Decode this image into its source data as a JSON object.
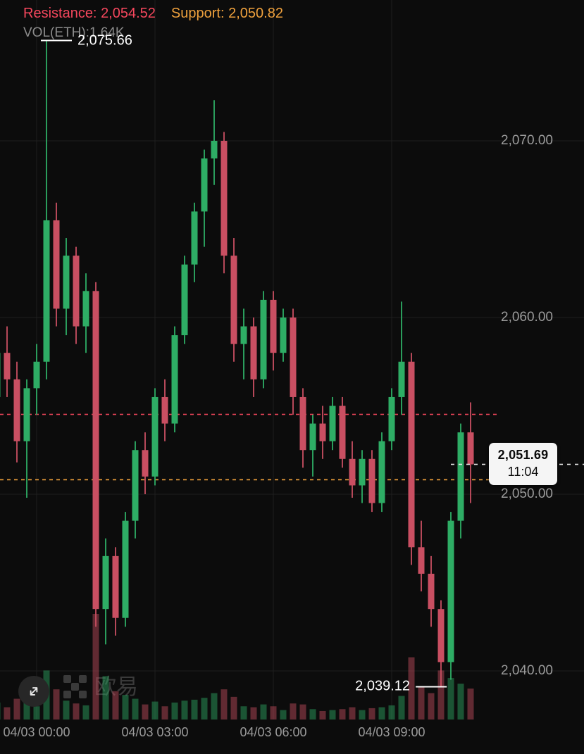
{
  "header": {
    "resistance_label": "Resistance:",
    "resistance_value": "2,054.52",
    "support_label": "Support:",
    "support_value": "2,050.82",
    "volume_text": "VOL(ETH):1.64K"
  },
  "annotations": {
    "high_label": "2,075.66",
    "low_label": "2,039.12"
  },
  "price_tag": {
    "price": "2,051.69",
    "time": "11:04"
  },
  "y_axis": {
    "labels": [
      "2,070.00",
      "2,060.00",
      "2,050.00",
      "2,040.00"
    ],
    "values": [
      2070,
      2060,
      2050,
      2040
    ]
  },
  "x_axis": {
    "labels": [
      "04/03 00:00",
      "04/03 03:00",
      "04/03 06:00",
      "04/03 09:00"
    ]
  },
  "watermark": {
    "text": "欧易"
  },
  "colors": {
    "background": "#0C0C0C",
    "bull": "#2EAD65",
    "bear": "#C94F62",
    "resistance": "#F5475D",
    "support": "#EFA13D",
    "grid": "#1E1E1E",
    "axis_text": "#9B9B9B",
    "annotation_text": "#FFFFFF",
    "last_price_line": "#EDEDED",
    "price_tag_bg": "#F5F5F5",
    "price_tag_text": "#0B0B0B",
    "watermark": "#3A3A3A"
  },
  "chart_data": {
    "type": "candlestick",
    "title": "",
    "xlabel": "",
    "ylabel": "",
    "grid": true,
    "ylim": [
      2036,
      2078
    ],
    "levels": {
      "resistance": 2054.52,
      "support": 2050.82
    },
    "high": 2075.66,
    "low": 2039.12,
    "last_price": 2051.69,
    "last_time": "11:04",
    "tick_candle_indices": [
      4,
      16,
      28,
      40
    ],
    "candles_format": [
      "open",
      "high",
      "low",
      "close",
      "volume"
    ],
    "candles": [
      [
        2055.5,
        2059.0,
        2054.0,
        2058.0,
        900
      ],
      [
        2058.0,
        2059.5,
        2055.5,
        2056.5,
        650
      ],
      [
        2056.5,
        2057.5,
        2051.8,
        2053.0,
        1100
      ],
      [
        2053.0,
        2056.5,
        2049.8,
        2056.0,
        950
      ],
      [
        2056.0,
        2058.5,
        2054.5,
        2057.5,
        700
      ],
      [
        2057.5,
        2075.66,
        2056.5,
        2065.5,
        2600
      ],
      [
        2065.5,
        2066.5,
        2059.5,
        2060.5,
        1600
      ],
      [
        2060.5,
        2064.5,
        2059.0,
        2063.5,
        1000
      ],
      [
        2063.5,
        2064.0,
        2058.5,
        2059.5,
        850
      ],
      [
        2059.5,
        2062.5,
        2058.0,
        2061.5,
        750
      ],
      [
        2061.5,
        2062.0,
        2042.5,
        2043.5,
        5600
      ],
      [
        2043.5,
        2047.5,
        2041.5,
        2046.5,
        2300
      ],
      [
        2046.5,
        2047.0,
        2042.0,
        2043.0,
        1500
      ],
      [
        2043.0,
        2049.0,
        2042.5,
        2048.5,
        1300
      ],
      [
        2048.5,
        2053.0,
        2047.5,
        2052.5,
        1100
      ],
      [
        2052.5,
        2053.5,
        2050.0,
        2051.0,
        800
      ],
      [
        2051.0,
        2056.0,
        2050.5,
        2055.5,
        950
      ],
      [
        2055.5,
        2056.5,
        2053.0,
        2054.0,
        700
      ],
      [
        2054.0,
        2059.5,
        2053.5,
        2059.0,
        900
      ],
      [
        2059.0,
        2063.5,
        2058.5,
        2063.0,
        1000
      ],
      [
        2063.0,
        2066.5,
        2062.0,
        2066.0,
        1050
      ],
      [
        2066.0,
        2069.5,
        2064.0,
        2069.0,
        1150
      ],
      [
        2069.0,
        2072.3,
        2067.5,
        2070.0,
        1400
      ],
      [
        2070.0,
        2070.5,
        2062.5,
        2063.5,
        1600
      ],
      [
        2063.5,
        2064.5,
        2057.5,
        2058.5,
        1200
      ],
      [
        2058.5,
        2060.5,
        2056.5,
        2059.5,
        700
      ],
      [
        2059.5,
        2060.0,
        2055.5,
        2056.5,
        650
      ],
      [
        2056.5,
        2061.5,
        2056.0,
        2061.0,
        800
      ],
      [
        2061.0,
        2061.5,
        2057.0,
        2058.0,
        700
      ],
      [
        2058.0,
        2060.5,
        2057.5,
        2060.0,
        500
      ],
      [
        2060.0,
        2060.5,
        2054.5,
        2055.5,
        850
      ],
      [
        2055.5,
        2056.0,
        2051.5,
        2052.5,
        800
      ],
      [
        2052.5,
        2054.5,
        2051.0,
        2054.0,
        550
      ],
      [
        2054.0,
        2055.0,
        2052.0,
        2053.0,
        450
      ],
      [
        2053.0,
        2055.5,
        2052.5,
        2055.0,
        500
      ],
      [
        2055.0,
        2055.5,
        2051.5,
        2052.0,
        550
      ],
      [
        2052.0,
        2053.0,
        2049.8,
        2050.5,
        650
      ],
      [
        2050.5,
        2052.5,
        2049.5,
        2052.0,
        500
      ],
      [
        2052.0,
        2052.5,
        2049.0,
        2049.5,
        600
      ],
      [
        2049.5,
        2053.5,
        2049.0,
        2053.0,
        650
      ],
      [
        2053.0,
        2056.0,
        2052.5,
        2055.5,
        750
      ],
      [
        2055.5,
        2060.9,
        2054.5,
        2057.5,
        1250
      ],
      [
        2057.5,
        2058.0,
        2046.0,
        2047.0,
        3300
      ],
      [
        2047.0,
        2048.5,
        2044.5,
        2045.5,
        1700
      ],
      [
        2045.5,
        2046.5,
        2042.5,
        2043.5,
        1400
      ],
      [
        2043.5,
        2044.0,
        2039.12,
        2040.5,
        2600
      ],
      [
        2040.5,
        2049.0,
        2039.5,
        2048.5,
        2200
      ],
      [
        2048.5,
        2054.0,
        2047.5,
        2053.5,
        1900
      ],
      [
        2053.5,
        2055.2,
        2049.5,
        2051.69,
        1640
      ]
    ]
  }
}
